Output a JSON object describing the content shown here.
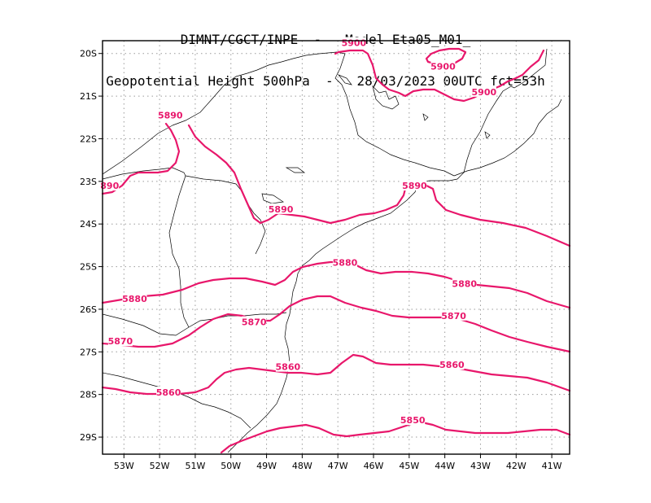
{
  "header": {
    "line1": "DIMNT/CGCT/INPE  -   Model Eta05_M01_",
    "line2": "Geopotential Height 500hPa  -   28/03/2023 00UTC fct=53h"
  },
  "colors": {
    "contour": "#e8176b",
    "coast": "#000000",
    "border": "#000000",
    "grid": "#9a9a9a"
  },
  "axes": {
    "lat_labels": [
      "20S",
      "21S",
      "22S",
      "23S",
      "24S",
      "25S",
      "26S",
      "27S",
      "28S",
      "29S"
    ],
    "lon_labels": [
      "53W",
      "52W",
      "51W",
      "50W",
      "49W",
      "48W",
      "47W",
      "46W",
      "45W",
      "44W",
      "43W",
      "42W",
      "41W"
    ]
  },
  "contours": [
    {
      "value": "5900",
      "labels": [
        {
          "text": "5900",
          "lon": -46.55,
          "lat": -19.75
        },
        {
          "text": "5900",
          "lon": -44.05,
          "lat": -20.3
        },
        {
          "text": "5900",
          "lon": -42.9,
          "lat": -20.9
        }
      ]
    },
    {
      "value": "5890",
      "labels": [
        {
          "text": "5890",
          "lon": -51.7,
          "lat": -21.45
        },
        {
          "text": "890",
          "lon": -53.4,
          "lat": -23.1
        },
        {
          "text": "5890",
          "lon": -48.6,
          "lat": -23.65
        },
        {
          "text": "5890",
          "lon": -44.85,
          "lat": -23.1
        }
      ]
    },
    {
      "value": "5880",
      "labels": [
        {
          "text": "5880",
          "lon": -52.7,
          "lat": -25.75
        },
        {
          "text": "5880",
          "lon": -46.8,
          "lat": -24.9
        },
        {
          "text": "5880",
          "lon": -43.45,
          "lat": -25.4
        }
      ]
    },
    {
      "value": "5870",
      "labels": [
        {
          "text": "5870",
          "lon": -53.1,
          "lat": -26.75
        },
        {
          "text": "5870",
          "lon": -49.35,
          "lat": -26.3
        },
        {
          "text": "5870",
          "lon": -43.75,
          "lat": -26.15
        }
      ]
    },
    {
      "value": "5860",
      "labels": [
        {
          "text": "5860",
          "lon": -51.75,
          "lat": -27.95
        },
        {
          "text": "5860",
          "lon": -48.4,
          "lat": -27.35
        },
        {
          "text": "5860",
          "lon": -43.8,
          "lat": -27.3
        }
      ]
    },
    {
      "value": "5850",
      "labels": [
        {
          "text": "5850",
          "lon": -44.9,
          "lat": -28.6
        }
      ]
    }
  ]
}
